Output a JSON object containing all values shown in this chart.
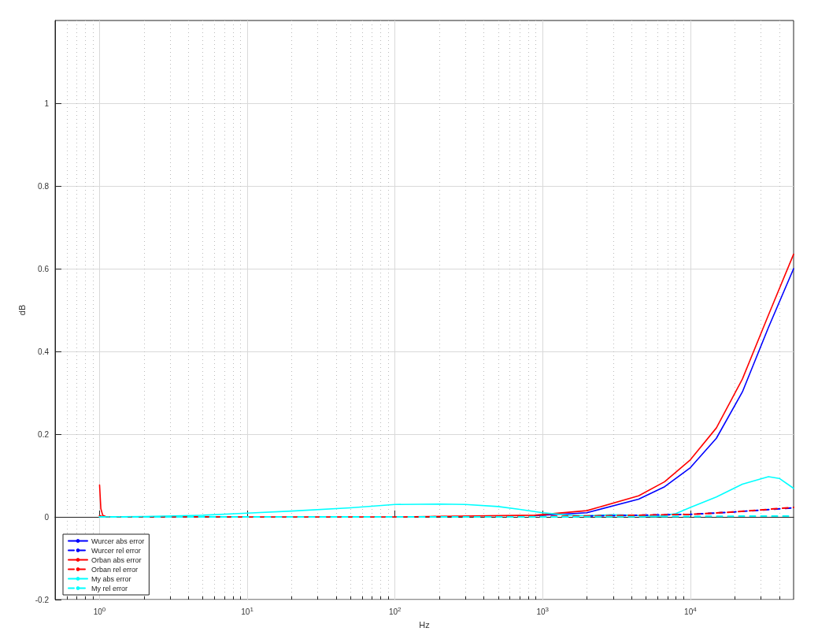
{
  "chart_data": {
    "type": "line",
    "xlabel": "Hz",
    "ylabel": "dB",
    "log": "x",
    "grid": true,
    "legend": "bottom left",
    "marker": "none",
    "xlim": [
      0.5,
      50000
    ],
    "ylim": [
      -0.2,
      1.2
    ],
    "xticks": [
      {
        "value": 0.6,
        "label": null
      },
      {
        "value": 0.7,
        "label": null
      },
      {
        "value": 0.8,
        "label": null
      },
      {
        "value": 0.9,
        "label": null
      },
      {
        "value": 1,
        "label": "10$^{0}$"
      },
      {
        "value": 2,
        "label": null
      },
      {
        "value": 3,
        "label": null
      },
      {
        "value": 4,
        "label": null
      },
      {
        "value": 5,
        "label": null
      },
      {
        "value": 6,
        "label": null
      },
      {
        "value": 7,
        "label": null
      },
      {
        "value": 8,
        "label": null
      },
      {
        "value": 9,
        "label": null
      },
      {
        "value": 10,
        "label": "10$^{1}$"
      },
      {
        "value": 20,
        "label": null
      },
      {
        "value": 30,
        "label": null
      },
      {
        "value": 40,
        "label": null
      },
      {
        "value": 50,
        "label": null
      },
      {
        "value": 60,
        "label": null
      },
      {
        "value": 70,
        "label": null
      },
      {
        "value": 80,
        "label": null
      },
      {
        "value": 90,
        "label": null
      },
      {
        "value": 100,
        "label": "10$^{2}$"
      },
      {
        "value": 200,
        "label": null
      },
      {
        "value": 300,
        "label": null
      },
      {
        "value": 400,
        "label": null
      },
      {
        "value": 500,
        "label": null
      },
      {
        "value": 600,
        "label": null
      },
      {
        "value": 700,
        "label": null
      },
      {
        "value": 800,
        "label": null
      },
      {
        "value": 900,
        "label": null
      },
      {
        "value": 1000,
        "label": "10$^{3}$"
      },
      {
        "value": 2000,
        "label": null
      },
      {
        "value": 3000,
        "label": null
      },
      {
        "value": 4000,
        "label": null
      },
      {
        "value": 5000,
        "label": null
      },
      {
        "value": 6000,
        "label": null
      },
      {
        "value": 7000,
        "label": null
      },
      {
        "value": 8000,
        "label": null
      },
      {
        "value": 9000,
        "label": null
      },
      {
        "value": 10000,
        "label": "10$^{4}$"
      },
      {
        "value": 20000,
        "label": null
      },
      {
        "value": 30000,
        "label": null
      },
      {
        "value": 40000,
        "label": null
      }
    ],
    "yticks": [
      -0.2,
      0,
      0.2,
      0.4,
      0.6,
      0.8,
      1
    ],
    "series": [
      {
        "name": "Wurcer abs error",
        "color": "#0000ff",
        "line_style": "solid",
        "x": [
          885,
          1990,
          4467,
          6700,
          10000,
          15000,
          22500,
          33800,
          50000
        ],
        "values": [
          0.003,
          0.01,
          0.043,
          0.073,
          0.119,
          0.19,
          0.302,
          0.458,
          0.6
        ]
      },
      {
        "name": "Wurcer rel error",
        "color": "#0000ff",
        "line_style": "dashed",
        "x": [
          2000,
          3000,
          10000,
          20000,
          50000
        ],
        "values": [
          0.002,
          0.003,
          0.006,
          0.012,
          0.022
        ]
      },
      {
        "name": "Orban abs error",
        "color": "#ff0000",
        "line_style": "solid",
        "x": [
          1,
          1.02,
          1.05,
          1.1,
          10,
          100,
          885,
          1990,
          4467,
          6700,
          10000,
          15000,
          22500,
          33800,
          50000
        ],
        "values": [
          0.077,
          0.02,
          0.004,
          0.001,
          0,
          0,
          0.004,
          0.015,
          0.051,
          0.085,
          0.138,
          0.215,
          0.333,
          0.488,
          0.635
        ]
      },
      {
        "name": "Orban rel error",
        "color": "#ff0000",
        "line_style": "dashed",
        "x": [
          1,
          1.05,
          10,
          100,
          1000,
          3000,
          10000,
          20000,
          50000
        ],
        "values": [
          0.003,
          0,
          0,
          0,
          0.001,
          0.003,
          0.006,
          0.012,
          0.023
        ]
      },
      {
        "name": "My abs error",
        "color": "#00ffff",
        "line_style": "solid",
        "x": [
          1,
          2,
          5,
          10,
          20,
          50,
          100,
          200,
          300,
          500,
          700,
          1000,
          1500,
          2000,
          3000,
          4000,
          6000,
          8000,
          10000,
          15000,
          22500,
          33800,
          40000,
          50000
        ],
        "values": [
          0,
          0.001,
          0.004,
          0.009,
          0.014,
          0.022,
          0.03,
          0.031,
          0.03,
          0.025,
          0.018,
          0.01,
          0.004,
          0.003,
          0.005,
          0.004,
          0.001,
          0.008,
          0.023,
          0.048,
          0.079,
          0.097,
          0.093,
          0.069
        ]
      },
      {
        "name": "My rel error",
        "color": "#00ffff",
        "line_style": "dashed",
        "x": [
          1,
          100,
          1000,
          10000,
          30000,
          50000
        ],
        "values": [
          0,
          0,
          0,
          0.001,
          0.002,
          0.002
        ]
      }
    ]
  }
}
